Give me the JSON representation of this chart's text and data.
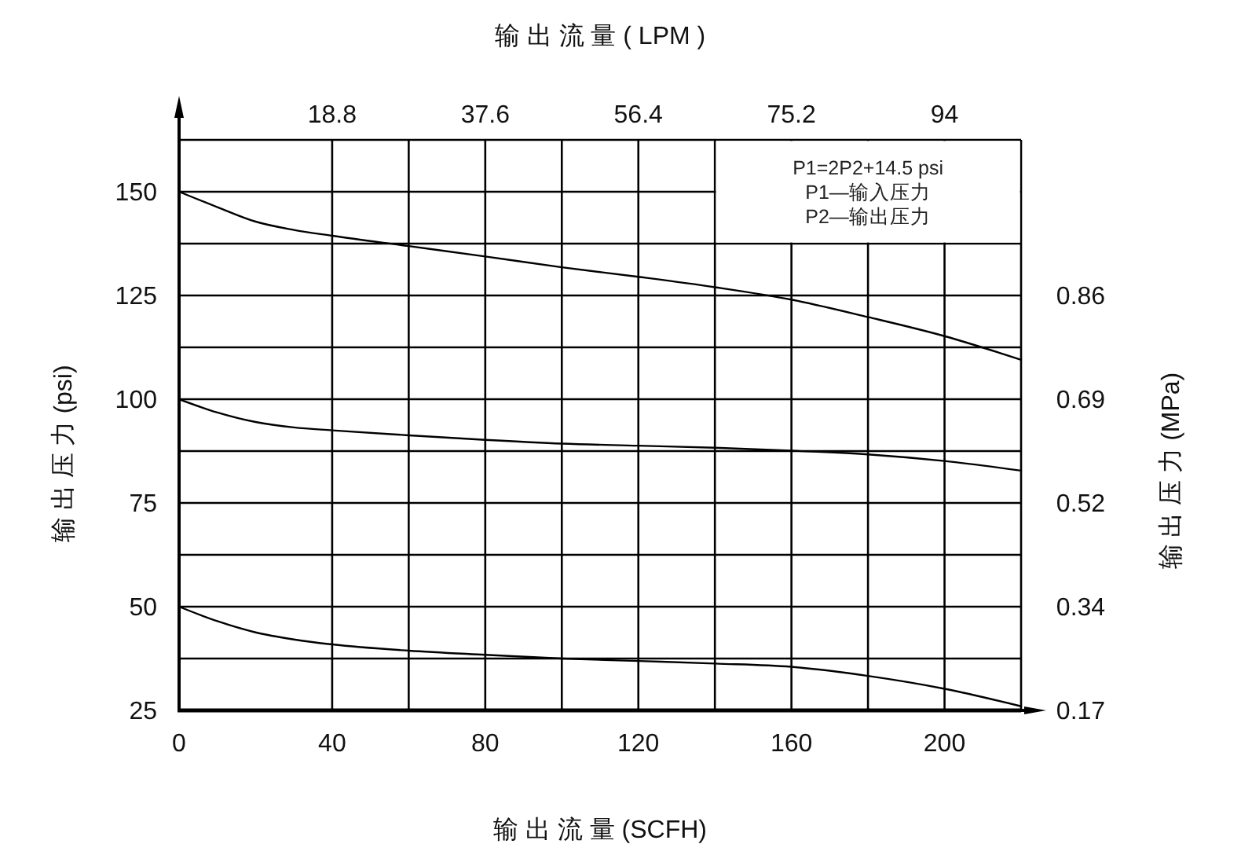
{
  "chart_data": {
    "type": "line",
    "x2label": "输 出 流 量 ( LPM )",
    "xlabel": "输 出 流 量 (SCFH)",
    "ylabel": "输 出 压 力 (psi)",
    "y2label": "输 出 压 力 (MPa)",
    "x": [
      0,
      10,
      20,
      30,
      40,
      60,
      80,
      100,
      120,
      140,
      160,
      180,
      200,
      220
    ],
    "series": [
      {
        "color": "#000000",
        "values": [
          150,
          146.3,
          142.8,
          140.8,
          139.4,
          136.9,
          134.4,
          131.8,
          129.5,
          127.0,
          124.0,
          119.8,
          115.2,
          109.5
        ]
      },
      {
        "color": "#000000",
        "values": [
          100,
          96.8,
          94.5,
          93.2,
          92.5,
          91.3,
          90.2,
          89.3,
          88.8,
          88.3,
          87.6,
          86.7,
          85.1,
          82.8
        ]
      },
      {
        "color": "#000000",
        "values": [
          50,
          46.5,
          43.8,
          42.1,
          40.9,
          39.4,
          38.4,
          37.5,
          36.9,
          36.3,
          35.5,
          33.3,
          30.2,
          26.0
        ]
      }
    ],
    "xlim": [
      0,
      220
    ],
    "xticks": [
      0,
      40,
      {
        "value": 60,
        "label": null
      },
      80,
      {
        "value": 100,
        "label": null
      },
      120,
      {
        "value": 140,
        "label": null
      },
      160,
      {
        "value": 180,
        "label": null
      },
      200,
      {
        "value": 220,
        "label": null
      }
    ],
    "ylim": [
      25,
      162.5
    ],
    "yticks": [
      25,
      {
        "value": 37.5,
        "label": null
      },
      50,
      {
        "value": 62.5,
        "label": null
      },
      75,
      {
        "value": 87.5,
        "label": null
      },
      100,
      {
        "value": 112.5,
        "label": null
      },
      125,
      {
        "value": 137.5,
        "label": null
      },
      150,
      {
        "value": 162.5,
        "label": null
      }
    ],
    "x2lim": [
      0,
      103.4
    ],
    "x2ticks": [
      18.8,
      37.6,
      56.4,
      75.2,
      94
    ],
    "y2lim": [
      0.172,
      1.12
    ],
    "y2ticks": [
      {
        "value": 0.172,
        "label": "0.17"
      },
      {
        "value": 0.345,
        "label": "0.34"
      },
      {
        "value": 0.517,
        "label": "0.52"
      },
      {
        "value": 0.689,
        "label": "0.69"
      },
      {
        "value": 0.862,
        "label": "0.86"
      }
    ],
    "grid": true,
    "annotations": [
      "P1=2P2+14.5 psi",
      "P1—输入压力",
      "P2—输出压力"
    ]
  }
}
